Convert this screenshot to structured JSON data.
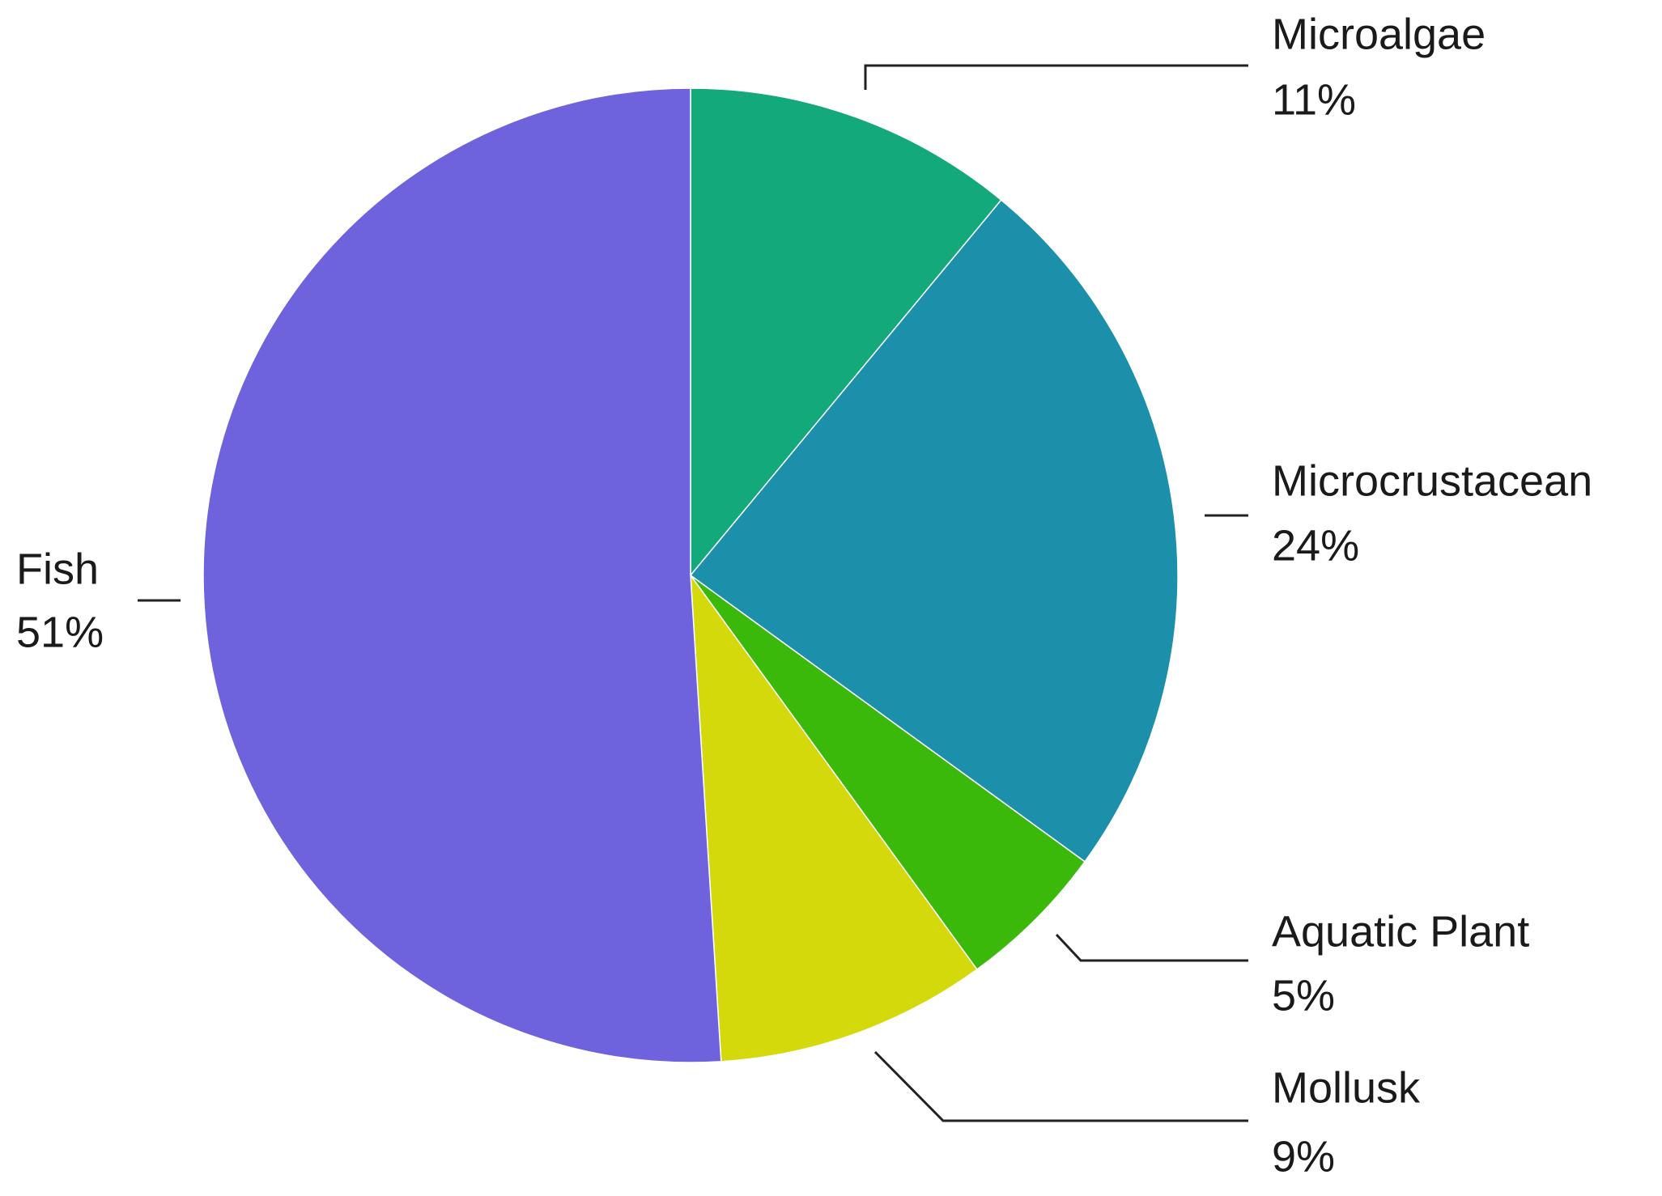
{
  "chart_data": {
    "type": "pie",
    "categories": [
      "Microalgae",
      "Microcrustacean",
      "Aquatic Plant",
      "Mollusk",
      "Fish"
    ],
    "values": [
      11,
      24,
      5,
      9,
      51
    ],
    "value_labels": [
      "11%",
      "24%",
      "5%",
      "9%",
      "51%"
    ],
    "colors": [
      "#13a97a",
      "#1c90aa",
      "#3bb90b",
      "#d4d90b",
      "#6e63dc"
    ]
  }
}
